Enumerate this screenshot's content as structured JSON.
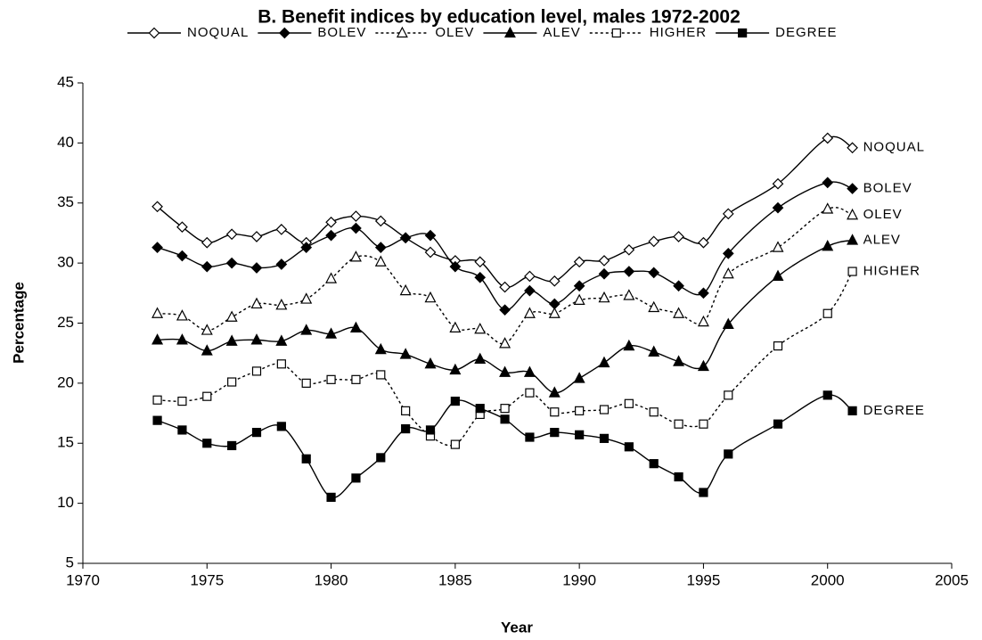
{
  "chart_data": {
    "type": "line",
    "title": "B. Benefit indices by education level, males 1972-2002",
    "x_label": "Year",
    "y_label": "Percentage",
    "x": [
      1973,
      1974,
      1975,
      1976,
      1977,
      1978,
      1979,
      1980,
      1981,
      1982,
      1983,
      1984,
      1985,
      1986,
      1987,
      1988,
      1989,
      1990,
      1991,
      1992,
      1993,
      1994,
      1995,
      1996,
      1998,
      2000,
      2001
    ],
    "xlim": [
      1970,
      2005
    ],
    "xticks": [
      1970,
      1975,
      1980,
      1985,
      1990,
      1995,
      2000,
      2005
    ],
    "ylim": [
      5,
      45
    ],
    "yticks": [
      5,
      10,
      15,
      20,
      25,
      30,
      35,
      40,
      45
    ],
    "grid": false,
    "legend": "top",
    "smooth": true,
    "series": [
      {
        "name": "NOQUAL",
        "color": "#000000",
        "marker": "diamond",
        "filled": false,
        "dashed": false,
        "values": [
          34.7,
          33.0,
          31.7,
          32.4,
          32.2,
          32.8,
          31.7,
          33.4,
          33.9,
          33.5,
          32.1,
          30.9,
          30.2,
          30.1,
          28.0,
          28.9,
          28.5,
          30.1,
          30.2,
          31.1,
          31.8,
          32.2,
          31.7,
          34.1,
          36.6,
          40.4,
          39.6
        ]
      },
      {
        "name": "BOLEV",
        "color": "#000000",
        "marker": "diamond",
        "filled": true,
        "dashed": false,
        "values": [
          31.3,
          30.6,
          29.7,
          30.0,
          29.6,
          29.9,
          31.3,
          32.3,
          32.9,
          31.3,
          32.1,
          32.3,
          29.7,
          28.8,
          26.1,
          27.7,
          26.6,
          28.1,
          29.1,
          29.3,
          29.2,
          28.1,
          27.5,
          30.8,
          34.6,
          36.7,
          36.2
        ]
      },
      {
        "name": "OLEV",
        "color": "#000000",
        "marker": "triangle",
        "filled": false,
        "dashed": true,
        "values": [
          25.8,
          25.6,
          24.4,
          25.5,
          26.6,
          26.5,
          27.0,
          28.7,
          30.5,
          30.1,
          27.7,
          27.1,
          24.6,
          24.5,
          23.3,
          25.8,
          25.8,
          26.9,
          27.1,
          27.3,
          26.3,
          25.8,
          25.1,
          29.1,
          31.3,
          34.5,
          34.0
        ]
      },
      {
        "name": "ALEV",
        "color": "#000000",
        "marker": "triangle",
        "filled": true,
        "dashed": false,
        "values": [
          23.6,
          23.6,
          22.7,
          23.5,
          23.6,
          23.5,
          24.4,
          24.1,
          24.6,
          22.8,
          22.4,
          21.6,
          21.1,
          22.0,
          20.9,
          20.9,
          19.2,
          20.4,
          21.7,
          23.1,
          22.6,
          21.8,
          21.4,
          24.9,
          28.9,
          31.4,
          31.9
        ]
      },
      {
        "name": "HIGHER",
        "color": "#000000",
        "marker": "square",
        "filled": false,
        "dashed": true,
        "values": [
          18.6,
          18.5,
          18.9,
          20.1,
          21.0,
          21.6,
          20.0,
          20.3,
          20.3,
          20.7,
          17.7,
          15.6,
          14.9,
          17.4,
          17.9,
          19.2,
          17.6,
          17.7,
          17.8,
          18.3,
          17.6,
          16.6,
          16.6,
          19.0,
          23.1,
          25.8,
          29.3
        ]
      },
      {
        "name": "DEGREE",
        "color": "#000000",
        "marker": "square",
        "filled": true,
        "dashed": false,
        "values": [
          16.9,
          16.1,
          15.0,
          14.8,
          15.9,
          16.4,
          13.7,
          10.5,
          12.1,
          13.8,
          16.2,
          16.1,
          18.5,
          17.9,
          17.0,
          15.5,
          15.9,
          15.7,
          15.4,
          14.7,
          13.3,
          12.2,
          10.9,
          14.1,
          16.6,
          19.0,
          17.7
        ]
      }
    ]
  }
}
